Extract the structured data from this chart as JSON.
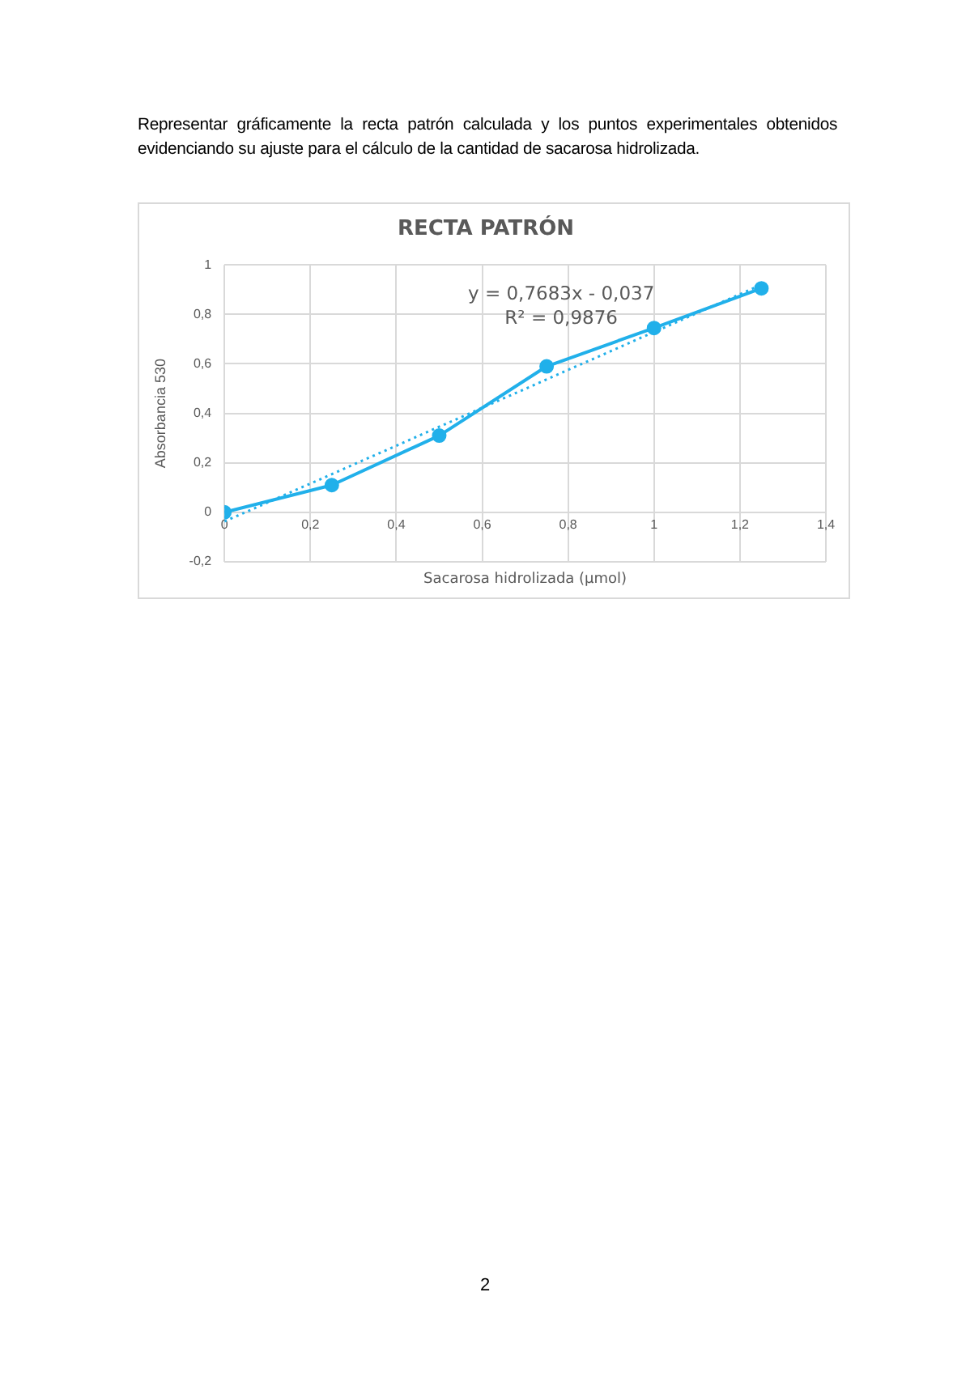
{
  "chart_data": {
    "type": "scatter",
    "title": "RECTA PATRÓN",
    "xlabel": "Sacarosa hidrolizada (µmol)",
    "ylabel": "Absorbancia 530",
    "series": [
      {
        "type": "line",
        "color": "#21b0ea",
        "x": [
          0,
          0.25,
          0.5,
          0.75,
          1,
          1.25
        ],
        "values": [
          0,
          0.11,
          0.31,
          0.59,
          0.745,
          0.905
        ],
        "marker": "circle",
        "line_style": "solid"
      },
      {
        "type": "line",
        "color": "#21b0ea",
        "x": [
          0,
          1.25
        ],
        "values": [
          -0.037,
          0.92
        ],
        "marker": "none",
        "line_style": "dotted"
      }
    ],
    "xlim": [
      0,
      1.4
    ],
    "xticks": [
      0,
      {
        "value": 0.2,
        "label": "0,2"
      },
      {
        "value": 0.4,
        "label": "0,4"
      },
      {
        "value": 0.6,
        "label": "0,6"
      },
      {
        "value": 0.8,
        "label": "0,8"
      },
      1,
      {
        "value": 1.2,
        "label": "1,2"
      },
      {
        "value": 1.4,
        "label": "1,4"
      }
    ],
    "ylim": [
      -0.2,
      1
    ],
    "yticks": [
      {
        "value": -0.2,
        "label": "-0,2"
      },
      0,
      {
        "value": 0.2,
        "label": "0,2"
      },
      {
        "value": 0.4,
        "label": "0,4"
      },
      {
        "value": 0.6,
        "label": "0,6"
      },
      {
        "value": 0.8,
        "label": "0,8"
      },
      1
    ],
    "grid": true,
    "legend": false,
    "annotations": [
      "Representar gráficamente la recta patrón calculada y los puntos experimentales obtenidos evidenciando su ajuste para el cálculo de la cantidad de sacarosa hidrolizada.",
      "y = 0,7683x - 0,037",
      "R² = 0,9876",
      "2"
    ]
  }
}
